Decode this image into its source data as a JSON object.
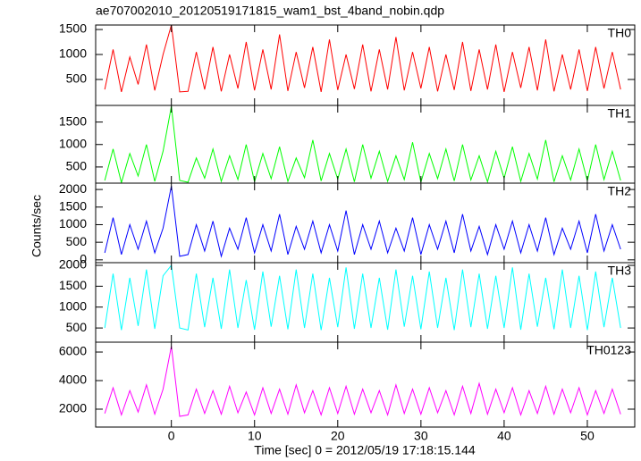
{
  "chart_data": {
    "type": "line",
    "title": "ae707002010_20120519171815_wam1_bst_4band_nobin.qdp",
    "xlabel": "Time [sec] 0 = 2012/05/19 17:18:15.144",
    "ylabel": "Counts/sec",
    "xlim": [
      -9.1,
      55.7
    ],
    "xticks": [
      0,
      10,
      20,
      30,
      40,
      50
    ],
    "x": [
      -8,
      -7,
      -6,
      -5,
      -4,
      -3,
      -2,
      -1,
      0,
      1,
      2,
      3,
      4,
      5,
      6,
      7,
      8,
      9,
      10,
      11,
      12,
      13,
      14,
      15,
      16,
      17,
      18,
      19,
      20,
      21,
      22,
      23,
      24,
      25,
      26,
      27,
      28,
      29,
      30,
      31,
      32,
      33,
      34,
      35,
      36,
      37,
      38,
      39,
      40,
      41,
      42,
      43,
      44,
      45,
      46,
      47,
      48,
      49,
      50,
      51,
      52,
      53,
      54
    ],
    "panels": [
      {
        "name": "TH0",
        "color": "#ff0000",
        "ylim": [
          -20,
          1590
        ],
        "yticks": [
          500,
          1000,
          1500
        ],
        "values": [
          300,
          1100,
          250,
          950,
          400,
          1200,
          280,
          1000,
          1590,
          250,
          260,
          1050,
          300,
          1150,
          260,
          1000,
          320,
          1250,
          280,
          1100,
          300,
          1400,
          270,
          1050,
          330,
          1150,
          250,
          1300,
          290,
          1000,
          310,
          1200,
          260,
          1100,
          300,
          1350,
          280,
          1050,
          320,
          1150,
          260,
          1000,
          290,
          1250,
          270,
          1100,
          300,
          1200,
          250,
          1050,
          330,
          1150,
          280,
          1300,
          260,
          1000,
          300,
          1100,
          270,
          1150,
          320,
          1050,
          300
        ]
      },
      {
        "name": "TH1",
        "color": "#00ff00",
        "ylim": [
          140,
          1870
        ],
        "yticks": [
          500,
          1000,
          1500
        ],
        "values": [
          200,
          900,
          150,
          800,
          300,
          1000,
          180,
          850,
          1850,
          200,
          160,
          700,
          250,
          900,
          180,
          750,
          220,
          1000,
          170,
          800,
          240,
          950,
          180,
          700,
          260,
          1100,
          190,
          800,
          230,
          900,
          170,
          1000,
          250,
          850,
          180,
          750,
          220,
          1050,
          160,
          800,
          240,
          900,
          190,
          1000,
          210,
          750,
          170,
          850,
          250,
          950,
          180,
          800,
          230,
          1100,
          170,
          750,
          210,
          900,
          190,
          1000,
          220,
          850,
          200
        ]
      },
      {
        "name": "TH2",
        "color": "#0000ff",
        "ylim": [
          -80,
          2180
        ],
        "yticks": [
          0,
          500,
          1000,
          1500,
          2000
        ],
        "values": [
          200,
          1200,
          150,
          1000,
          300,
          1100,
          200,
          900,
          2100,
          100,
          150,
          1000,
          250,
          1100,
          100,
          900,
          300,
          1200,
          200,
          1000,
          250,
          1300,
          150,
          950,
          300,
          1100,
          200,
          1000,
          250,
          1400,
          150,
          1000,
          300,
          1100,
          200,
          900,
          250,
          1200,
          150,
          1000,
          300,
          1100,
          200,
          1300,
          250,
          950,
          150,
          1000,
          300,
          1100,
          200,
          1000,
          250,
          1200,
          150,
          900,
          300,
          1100,
          200,
          1300,
          250,
          1000,
          300
        ]
      },
      {
        "name": "TH3",
        "color": "#00ffff",
        "ylim": [
          160,
          2064
        ],
        "yticks": [
          500,
          1000,
          1500,
          2000
        ],
        "values": [
          500,
          1800,
          450,
          1700,
          550,
          1900,
          480,
          1750,
          2000,
          500,
          450,
          1800,
          520,
          1700,
          480,
          1900,
          500,
          1650,
          460,
          1850,
          530,
          1750,
          470,
          1900,
          500,
          1800,
          450,
          1700,
          520,
          1950,
          480,
          1800,
          500,
          1700,
          460,
          1900,
          530,
          1750,
          470,
          1850,
          500,
          1700,
          450,
          1900,
          520,
          1800,
          480,
          1750,
          500,
          1950,
          460,
          1800,
          530,
          1700,
          470,
          1900,
          500,
          1750,
          450,
          1850,
          520,
          1700,
          500
        ]
      },
      {
        "name": "TH0123",
        "color": "#ff00ff",
        "ylim": [
          748,
          6690
        ],
        "yticks": [
          2000,
          4000,
          6000
        ],
        "values": [
          1700,
          3500,
          1600,
          3300,
          1800,
          3700,
          1650,
          3400,
          6400,
          1500,
          1600,
          3400,
          1700,
          3300,
          1650,
          3600,
          1750,
          3200,
          1600,
          3500,
          1700,
          3400,
          1650,
          3700,
          1750,
          3300,
          1600,
          3500,
          1700,
          3600,
          1650,
          3400,
          1750,
          3300,
          1600,
          3700,
          1700,
          3400,
          1650,
          3500,
          1750,
          3300,
          1600,
          3600,
          1700,
          3800,
          1650,
          3400,
          1750,
          3500,
          1600,
          3300,
          1700,
          3600,
          1650,
          3400,
          1750,
          3500,
          1600,
          3300,
          1700,
          3400,
          1650
        ]
      }
    ]
  }
}
